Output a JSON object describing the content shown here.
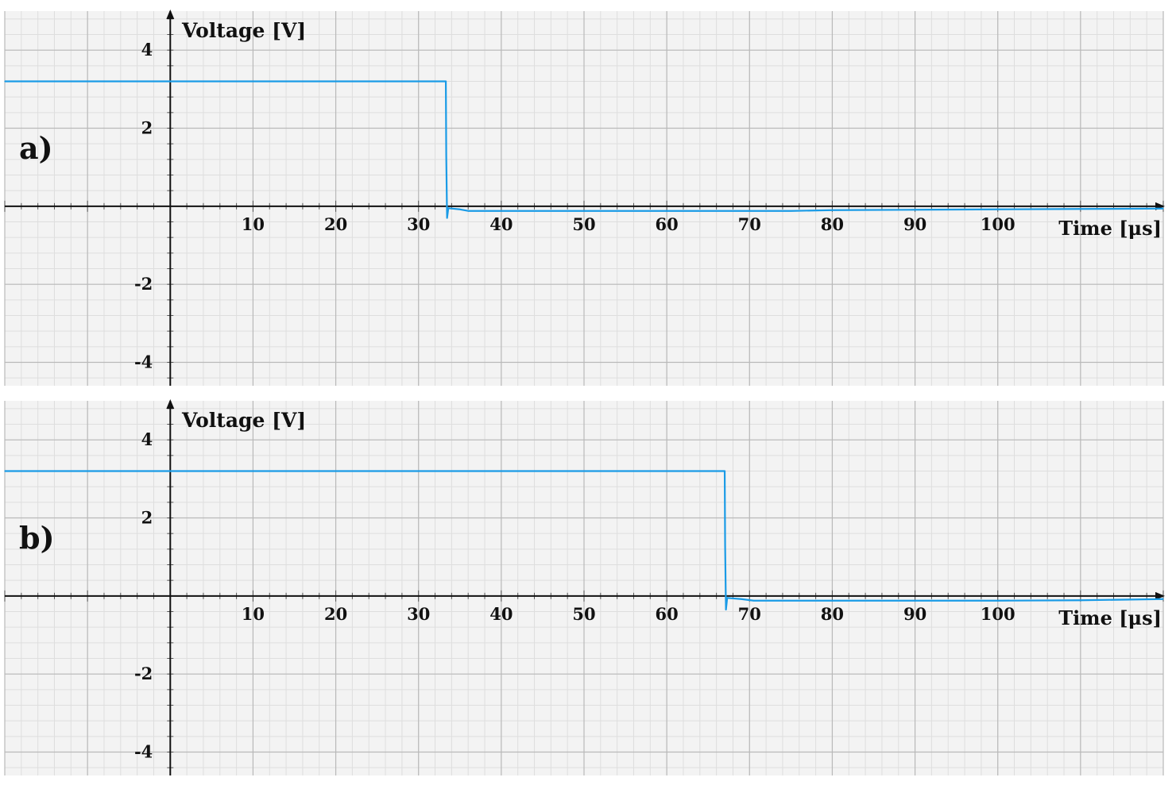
{
  "chart_data": [
    {
      "type": "line",
      "panel_label": "a)",
      "xlabel": "Time [μs]",
      "ylabel": "Voltage [V]",
      "xlim": [
        -20,
        120
      ],
      "ylim": [
        -4.6,
        5.0
      ],
      "x_ticks": [
        10,
        20,
        30,
        40,
        50,
        60,
        70,
        80,
        90,
        100
      ],
      "y_ticks": [
        4,
        2,
        -2,
        -4
      ],
      "x_tick_labels": [
        "10",
        "20",
        "30",
        "40",
        "50",
        "60",
        "70",
        "80",
        "90",
        "100"
      ],
      "y_tick_labels": [
        "4",
        "2",
        "-2",
        "-4"
      ],
      "grid": true,
      "series": [
        {
          "color": "#1a9be6",
          "points": [
            [
              -20,
              3.2
            ],
            [
              33.3,
              3.2
            ],
            [
              33.35,
              1.3
            ],
            [
              33.45,
              -0.3
            ],
            [
              33.6,
              -0.05
            ],
            [
              35.0,
              -0.08
            ],
            [
              36.0,
              -0.12
            ],
            [
              60,
              -0.12
            ],
            [
              75,
              -0.12
            ],
            [
              80,
              -0.1
            ],
            [
              90,
              -0.09
            ],
            [
              100,
              -0.08
            ],
            [
              110,
              -0.07
            ],
            [
              120,
              -0.06
            ]
          ]
        }
      ]
    },
    {
      "type": "line",
      "panel_label": "b)",
      "xlabel": "Time [μs]",
      "ylabel": "Voltage [V]",
      "xlim": [
        -20,
        120
      ],
      "ylim": [
        -4.6,
        5.0
      ],
      "x_ticks": [
        10,
        20,
        30,
        40,
        50,
        60,
        70,
        80,
        90,
        100
      ],
      "y_ticks": [
        4,
        2,
        -2,
        -4
      ],
      "x_tick_labels": [
        "10",
        "20",
        "30",
        "40",
        "50",
        "60",
        "70",
        "80",
        "90",
        "100"
      ],
      "y_tick_labels": [
        "4",
        "2",
        "-2",
        "-4"
      ],
      "grid": true,
      "series": [
        {
          "color": "#1a9be6",
          "points": [
            [
              -20,
              3.2
            ],
            [
              67.0,
              3.2
            ],
            [
              67.05,
              1.3
            ],
            [
              67.15,
              -0.35
            ],
            [
              67.3,
              -0.05
            ],
            [
              69.0,
              -0.08
            ],
            [
              70.5,
              -0.12
            ],
            [
              90,
              -0.12
            ],
            [
              100,
              -0.12
            ],
            [
              110,
              -0.11
            ],
            [
              120,
              -0.08
            ]
          ]
        }
      ]
    }
  ]
}
